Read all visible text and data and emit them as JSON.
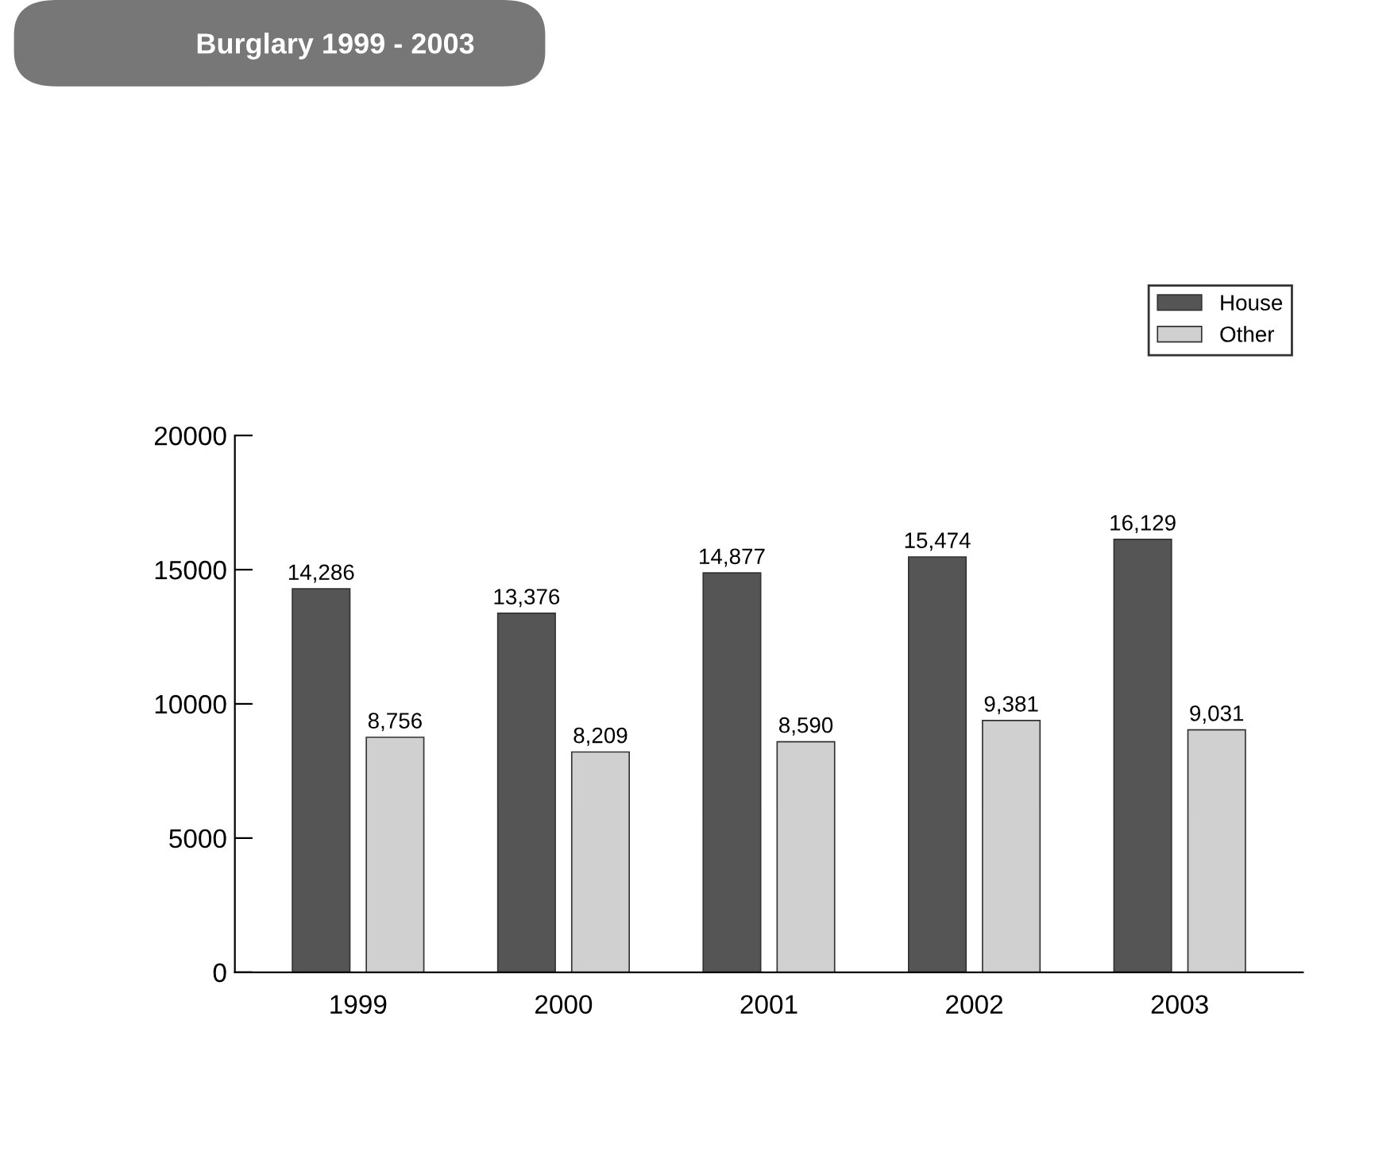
{
  "chart_data": {
    "type": "bar",
    "title": "Burglary 1999 - 2003",
    "categories": [
      "1999",
      "2000",
      "2001",
      "2002",
      "2003"
    ],
    "series": [
      {
        "name": "House",
        "color": "#555555",
        "values": [
          14286,
          13376,
          14877,
          15474,
          16129
        ],
        "value_labels": [
          "14,286",
          "13,376",
          "14,877",
          "15,474",
          "16,129"
        ]
      },
      {
        "name": "Other",
        "color": "#d0d0d0",
        "values": [
          8756,
          8209,
          8590,
          9381,
          9031
        ],
        "value_labels": [
          "8,756",
          "8,209",
          "8,590",
          "9,381",
          "9,031"
        ]
      }
    ],
    "ylim": [
      0,
      20000
    ],
    "yticks": [
      0,
      5000,
      10000,
      15000,
      20000
    ],
    "grid": false,
    "legend": "top right"
  }
}
